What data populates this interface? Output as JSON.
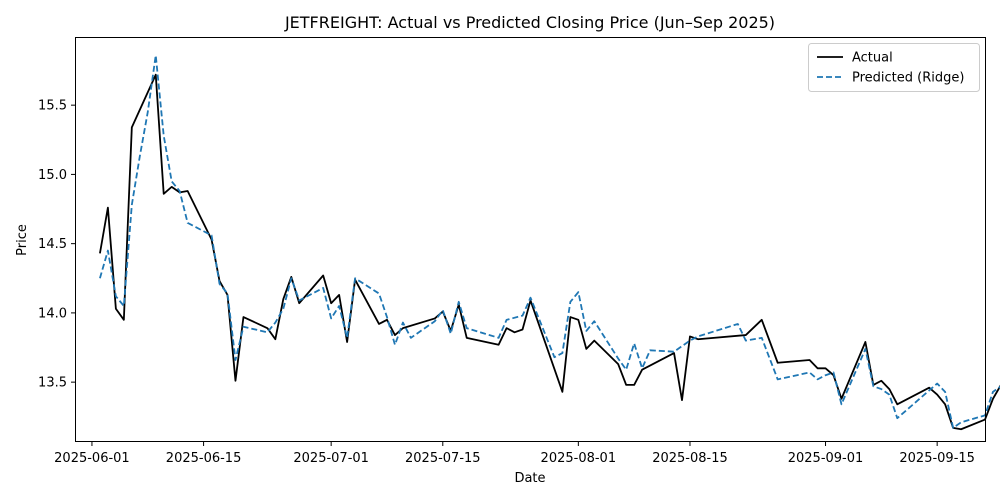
{
  "chart_data": {
    "type": "line",
    "title": "JETFREIGHT: Actual vs Predicted Closing Price (Jun–Sep 2025)",
    "xlabel": "Date",
    "ylabel": "Price",
    "x_is_date": true,
    "xlim": [
      "2025-05-30",
      "2025-09-21"
    ],
    "ylim": [
      13.075,
      15.985
    ],
    "x_ticks": [
      "2025-06-01",
      "2025-06-15",
      "2025-07-01",
      "2025-07-15",
      "2025-08-01",
      "2025-08-15",
      "2025-09-01",
      "2025-09-15"
    ],
    "y_ticks": [
      13.5,
      14.0,
      14.5,
      15.0,
      15.5
    ],
    "y_tick_labels": [
      "13.5",
      "14.0",
      "14.5",
      "15.0",
      "15.5"
    ],
    "legend": {
      "position": "upper-right"
    },
    "grid": false,
    "series": [
      {
        "name": "Actual",
        "color": "#000000",
        "style": "solid",
        "points": [
          [
            "2025-06-02",
            14.43
          ],
          [
            "2025-06-03",
            14.76
          ],
          [
            "2025-06-04",
            14.03
          ],
          [
            "2025-06-05",
            13.95
          ],
          [
            "2025-06-06",
            15.34
          ],
          [
            "2025-06-09",
            15.72
          ],
          [
            "2025-06-10",
            14.86
          ],
          [
            "2025-06-11",
            14.91
          ],
          [
            "2025-06-12",
            14.87
          ],
          [
            "2025-06-13",
            14.88
          ],
          [
            "2025-06-16",
            14.53
          ],
          [
            "2025-06-17",
            14.23
          ],
          [
            "2025-06-18",
            14.13
          ],
          [
            "2025-06-19",
            13.51
          ],
          [
            "2025-06-20",
            13.97
          ],
          [
            "2025-06-23",
            13.89
          ],
          [
            "2025-06-24",
            13.81
          ],
          [
            "2025-06-25",
            14.1
          ],
          [
            "2025-06-26",
            14.26
          ],
          [
            "2025-06-27",
            14.07
          ],
          [
            "2025-06-30",
            14.27
          ],
          [
            "2025-07-01",
            14.07
          ],
          [
            "2025-07-02",
            14.13
          ],
          [
            "2025-07-03",
            13.79
          ],
          [
            "2025-07-04",
            14.24
          ],
          [
            "2025-07-07",
            13.92
          ],
          [
            "2025-07-08",
            13.95
          ],
          [
            "2025-07-09",
            13.84
          ],
          [
            "2025-07-10",
            13.89
          ],
          [
            "2025-07-14",
            13.96
          ],
          [
            "2025-07-15",
            14.01
          ],
          [
            "2025-07-16",
            13.87
          ],
          [
            "2025-07-17",
            14.06
          ],
          [
            "2025-07-18",
            13.82
          ],
          [
            "2025-07-22",
            13.77
          ],
          [
            "2025-07-23",
            13.89
          ],
          [
            "2025-07-24",
            13.86
          ],
          [
            "2025-07-25",
            13.88
          ],
          [
            "2025-07-26",
            14.09
          ],
          [
            "2025-07-30",
            13.43
          ],
          [
            "2025-07-31",
            13.97
          ],
          [
            "2025-08-01",
            13.95
          ],
          [
            "2025-08-02",
            13.74
          ],
          [
            "2025-08-03",
            13.8
          ],
          [
            "2025-08-06",
            13.63
          ],
          [
            "2025-08-07",
            13.48
          ],
          [
            "2025-08-08",
            13.48
          ],
          [
            "2025-08-09",
            13.59
          ],
          [
            "2025-08-13",
            13.71
          ],
          [
            "2025-08-14",
            13.37
          ],
          [
            "2025-08-15",
            13.83
          ],
          [
            "2025-08-16",
            13.81
          ],
          [
            "2025-08-22",
            13.84
          ],
          [
            "2025-08-24",
            13.95
          ],
          [
            "2025-08-26",
            13.64
          ],
          [
            "2025-08-30",
            13.66
          ],
          [
            "2025-08-31",
            13.6
          ],
          [
            "2025-09-01",
            13.6
          ],
          [
            "2025-09-02",
            13.55
          ],
          [
            "2025-09-03",
            13.38
          ],
          [
            "2025-09-06",
            13.79
          ],
          [
            "2025-09-07",
            13.48
          ],
          [
            "2025-09-08",
            13.51
          ],
          [
            "2025-09-09",
            13.45
          ],
          [
            "2025-09-10",
            13.34
          ],
          [
            "2025-09-14",
            13.46
          ],
          [
            "2025-09-15",
            13.41
          ],
          [
            "2025-09-16",
            13.34
          ],
          [
            "2025-09-17",
            13.17
          ],
          [
            "2025-09-18",
            13.16
          ],
          [
            "2025-09-21",
            13.23
          ],
          [
            "2025-09-22",
            13.38
          ],
          [
            "2025-09-23",
            13.48
          ],
          [
            "2025-09-24",
            13.42
          ]
        ]
      },
      {
        "name": "Predicted (Ridge)",
        "color": "#1f77b4",
        "style": "dashed",
        "points": [
          [
            "2025-06-02",
            14.25
          ],
          [
            "2025-06-03",
            14.45
          ],
          [
            "2025-06-04",
            14.12
          ],
          [
            "2025-06-05",
            14.05
          ],
          [
            "2025-06-06",
            14.78
          ],
          [
            "2025-06-07",
            15.13
          ],
          [
            "2025-06-08",
            15.45
          ],
          [
            "2025-06-09",
            15.86
          ],
          [
            "2025-06-10",
            15.28
          ],
          [
            "2025-06-11",
            14.95
          ],
          [
            "2025-06-12",
            14.88
          ],
          [
            "2025-06-13",
            14.65
          ],
          [
            "2025-06-16",
            14.56
          ],
          [
            "2025-06-17",
            14.21
          ],
          [
            "2025-06-18",
            14.14
          ],
          [
            "2025-06-19",
            13.66
          ],
          [
            "2025-06-20",
            13.9
          ],
          [
            "2025-06-23",
            13.86
          ],
          [
            "2025-06-24",
            13.93
          ],
          [
            "2025-06-25",
            14.03
          ],
          [
            "2025-06-26",
            14.25
          ],
          [
            "2025-06-27",
            14.09
          ],
          [
            "2025-06-30",
            14.18
          ],
          [
            "2025-07-01",
            13.96
          ],
          [
            "2025-07-02",
            14.05
          ],
          [
            "2025-07-03",
            13.82
          ],
          [
            "2025-07-04",
            14.25
          ],
          [
            "2025-07-07",
            14.14
          ],
          [
            "2025-07-08",
            13.97
          ],
          [
            "2025-07-09",
            13.77
          ],
          [
            "2025-07-10",
            13.93
          ],
          [
            "2025-07-11",
            13.82
          ],
          [
            "2025-07-14",
            13.94
          ],
          [
            "2025-07-15",
            14.02
          ],
          [
            "2025-07-16",
            13.85
          ],
          [
            "2025-07-17",
            14.08
          ],
          [
            "2025-07-18",
            13.89
          ],
          [
            "2025-07-22",
            13.82
          ],
          [
            "2025-07-23",
            13.95
          ],
          [
            "2025-07-25",
            13.98
          ],
          [
            "2025-07-26",
            14.11
          ],
          [
            "2025-07-29",
            13.68
          ],
          [
            "2025-07-30",
            13.71
          ],
          [
            "2025-07-31",
            14.08
          ],
          [
            "2025-08-01",
            14.15
          ],
          [
            "2025-08-02",
            13.87
          ],
          [
            "2025-08-03",
            13.94
          ],
          [
            "2025-08-06",
            13.67
          ],
          [
            "2025-08-07",
            13.59
          ],
          [
            "2025-08-08",
            13.78
          ],
          [
            "2025-08-09",
            13.6
          ],
          [
            "2025-08-10",
            13.73
          ],
          [
            "2025-08-13",
            13.72
          ],
          [
            "2025-08-15",
            13.8
          ],
          [
            "2025-08-16",
            13.83
          ],
          [
            "2025-08-21",
            13.92
          ],
          [
            "2025-08-22",
            13.8
          ],
          [
            "2025-08-24",
            13.82
          ],
          [
            "2025-08-26",
            13.52
          ],
          [
            "2025-08-30",
            13.57
          ],
          [
            "2025-08-31",
            13.52
          ],
          [
            "2025-09-01",
            13.55
          ],
          [
            "2025-09-02",
            13.57
          ],
          [
            "2025-09-03",
            13.34
          ],
          [
            "2025-09-06",
            13.74
          ],
          [
            "2025-09-07",
            13.47
          ],
          [
            "2025-09-08",
            13.45
          ],
          [
            "2025-09-09",
            13.41
          ],
          [
            "2025-09-10",
            13.24
          ],
          [
            "2025-09-14",
            13.44
          ],
          [
            "2025-09-15",
            13.49
          ],
          [
            "2025-09-16",
            13.43
          ],
          [
            "2025-09-17",
            13.17
          ],
          [
            "2025-09-18",
            13.21
          ],
          [
            "2025-09-21",
            13.26
          ],
          [
            "2025-09-22",
            13.43
          ],
          [
            "2025-09-23",
            13.47
          ],
          [
            "2025-09-24",
            13.54
          ]
        ]
      }
    ]
  }
}
